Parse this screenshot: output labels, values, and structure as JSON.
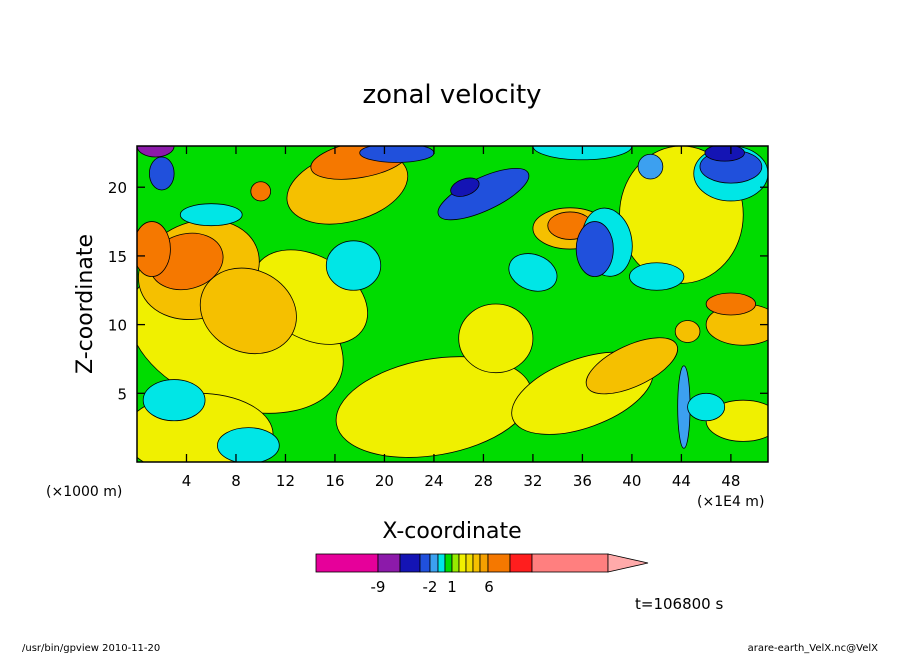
{
  "chart_data": {
    "type": "heatmap",
    "title": "zonal velocity",
    "xlabel": "X-coordinate",
    "ylabel": "Z-coordinate",
    "x_unit": "(×1E4 m)",
    "y_unit": "(×1000 m)",
    "x_ticks": [
      "4",
      "8",
      "12",
      "16",
      "20",
      "24",
      "28",
      "32",
      "36",
      "40",
      "44",
      "48"
    ],
    "y_ticks": [
      "5",
      "10",
      "15",
      "20"
    ],
    "xlim": [
      0,
      51
    ],
    "ylim": [
      0,
      23
    ],
    "grid": false,
    "colorbar": {
      "labels": [
        "-9",
        "-2",
        "1",
        "6"
      ],
      "colors": [
        "#e6009a",
        "#8c1aaa",
        "#1414b4",
        "#2050dc",
        "#3ca0f0",
        "#00e6e6",
        "#00dc00",
        "#96eb00",
        "#f0f000",
        "#f0dc00",
        "#f5c000",
        "#f5a000",
        "#f57800",
        "#ff1e1e",
        "#ff7f7f",
        "#ffaaaa"
      ]
    },
    "annotation": "t=106800 s"
  },
  "footer": {
    "left": "/usr/bin/gpview   2010-11-20",
    "right": "arare-earth_VelX.nc@VelX"
  }
}
